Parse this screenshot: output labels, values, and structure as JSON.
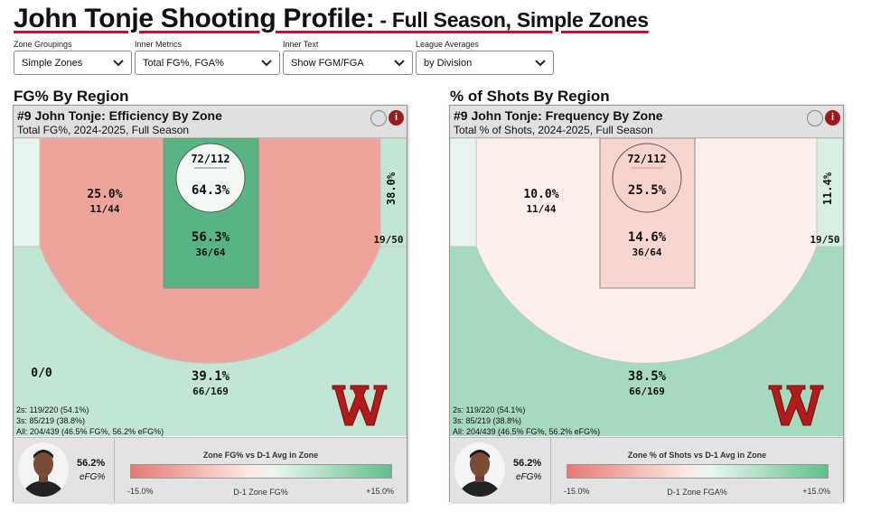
{
  "title": {
    "main": "John Tonje Shooting Profile:",
    "sub": " - Full Season, Simple Zones"
  },
  "controls": [
    {
      "label": "Zone Groupings",
      "value": "Simple Zones"
    },
    {
      "label": "Inner Metrics",
      "value": "Total FG%, FGA%"
    },
    {
      "label": "Inner Text",
      "value": "Show FGM/FGA"
    },
    {
      "label": "League Averages",
      "value": "by Division"
    }
  ],
  "colors": {
    "brand": "#c8102e",
    "cold": "#eea39b",
    "warm": "#c3e6d4",
    "hot": "#58b385"
  },
  "panels": [
    {
      "section_title": "FG% By Region",
      "header": "#9 John Tonje: Efficiency By Zone",
      "subheader": "Total FG%, 2024-2025, Full Season",
      "zones": {
        "rim": {
          "pct": "64.3%",
          "frac": "72/112"
        },
        "paint": {
          "pct": "56.3%",
          "frac": "36/64"
        },
        "midrange": {
          "pct": "25.0%",
          "frac": "11/44"
        },
        "corner3": {
          "pct": "38.0%",
          "frac": "19/50"
        },
        "left_corner3": {
          "frac": "0/0"
        },
        "above_break3": {
          "pct": "39.1%",
          "frac": "66/169"
        }
      },
      "stats": [
        "2s: 119/220 (54.1%)",
        "3s: 85/219 (38.8%)",
        "All: 204/439 (46.5% FG%, 56.2% eFG%)"
      ],
      "footer": {
        "value": "56.2%",
        "label": "eFG%",
        "legend_title": "Zone FG% vs D-1 Avg in Zone",
        "legend_min": "-15.0%",
        "legend_mid": "D-1 Zone FG%",
        "legend_max": "+15.0%"
      }
    },
    {
      "section_title": "% of Shots By Region",
      "header": "#9 John Tonje: Frequency By Zone",
      "subheader": "Total % of Shots, 2024-2025, Full Season",
      "zones": {
        "rim": {
          "pct": "25.5%",
          "frac": "72/112"
        },
        "paint": {
          "pct": "14.6%",
          "frac": "36/64"
        },
        "midrange": {
          "pct": "10.0%",
          "frac": "11/44"
        },
        "corner3": {
          "pct": "11.4%",
          "frac": "19/50"
        },
        "above_break3": {
          "pct": "38.5%",
          "frac": "66/169"
        }
      },
      "stats": [
        "2s: 119/220 (54.1%)",
        "3s: 85/219 (38.8%)",
        "All: 204/439 (46.5% FG%, 56.2% eFG%)"
      ],
      "footer": {
        "value": "56.2%",
        "label": "eFG%",
        "legend_title": "Zone % of Shots vs D-1 Avg in Zone",
        "legend_min": "-15.0%",
        "legend_mid": "D-1 Zone FGA%",
        "legend_max": "+15.0%"
      }
    }
  ]
}
